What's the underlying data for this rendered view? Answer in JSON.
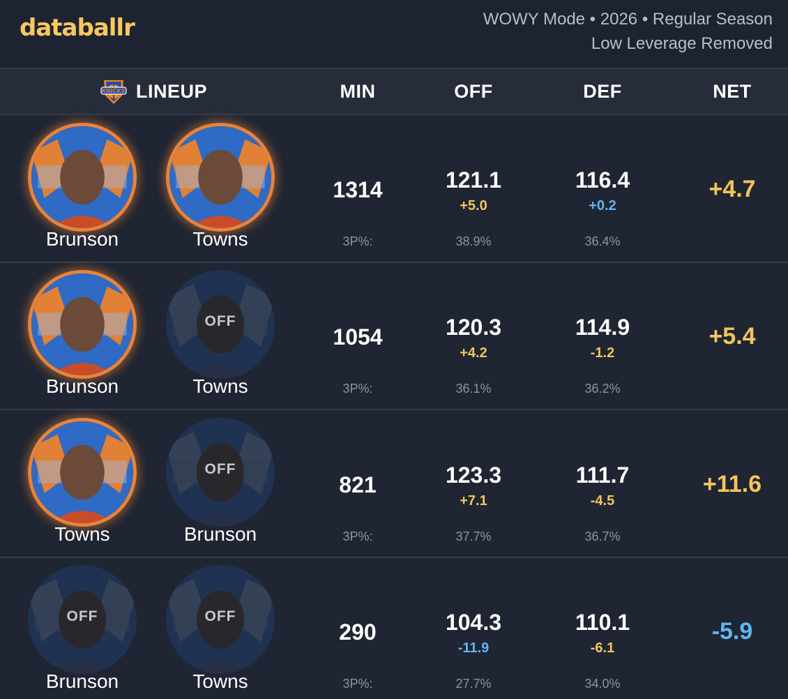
{
  "brand": {
    "name": "databallr",
    "accent": "#f6c85f"
  },
  "mode": {
    "line1": "WOWY Mode • 2026 • Regular Season",
    "line2": "Low Leverage Removed"
  },
  "header": {
    "team_icon": "knicks-logo-icon",
    "lineup": "LINEUP",
    "min": "MIN",
    "off": "OFF",
    "def": "DEF",
    "net": "NET"
  },
  "off_label": "OFF",
  "rows": [
    {
      "players": [
        {
          "name": "Brunson",
          "status": "on"
        },
        {
          "name": "Towns",
          "status": "on"
        }
      ],
      "min": "1314",
      "off": "121.1",
      "off_diff": "+5.0",
      "off_diff_color": "gold",
      "def": "116.4",
      "def_diff": "+0.2",
      "def_diff_color": "blue",
      "net": "+4.7",
      "net_color": "gold",
      "three_label": "3P%:",
      "off_3p": "38.9%",
      "def_3p": "36.4%"
    },
    {
      "players": [
        {
          "name": "Brunson",
          "status": "on"
        },
        {
          "name": "Towns",
          "status": "off"
        }
      ],
      "min": "1054",
      "off": "120.3",
      "off_diff": "+4.2",
      "off_diff_color": "gold",
      "def": "114.9",
      "def_diff": "-1.2",
      "def_diff_color": "gold",
      "net": "+5.4",
      "net_color": "gold",
      "three_label": "3P%:",
      "off_3p": "36.1%",
      "def_3p": "36.2%"
    },
    {
      "players": [
        {
          "name": "Towns",
          "status": "on"
        },
        {
          "name": "Brunson",
          "status": "off"
        }
      ],
      "min": "821",
      "off": "123.3",
      "off_diff": "+7.1",
      "off_diff_color": "gold",
      "def": "111.7",
      "def_diff": "-4.5",
      "def_diff_color": "gold",
      "net": "+11.6",
      "net_color": "gold",
      "three_label": "3P%:",
      "off_3p": "37.7%",
      "def_3p": "36.7%"
    },
    {
      "players": [
        {
          "name": "Brunson",
          "status": "off"
        },
        {
          "name": "Towns",
          "status": "off"
        }
      ],
      "min": "290",
      "off": "104.3",
      "off_diff": "-11.9",
      "off_diff_color": "blue",
      "def": "110.1",
      "def_diff": "-6.1",
      "def_diff_color": "gold",
      "net": "-5.9",
      "net_color": "blue",
      "three_label": "3P%:",
      "off_3p": "27.7%",
      "def_3p": "34.0%"
    }
  ],
  "colors": {
    "gold": "#f3c659",
    "blue": "#5eb6f0",
    "orange_ring": "#e8833a",
    "knicks_blue": "#2f6ac4",
    "knicks_orange": "#f58426"
  }
}
